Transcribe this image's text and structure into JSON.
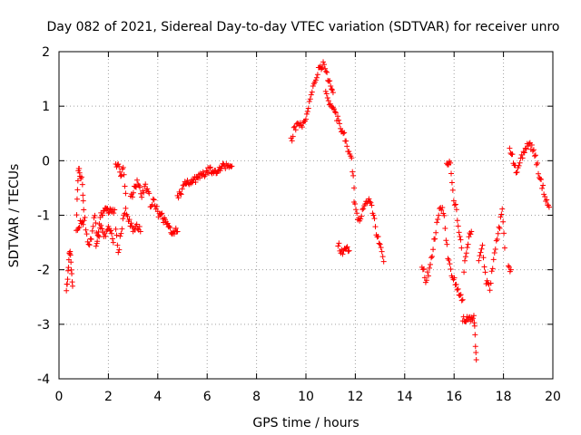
{
  "chart_data": {
    "type": "scatter",
    "title": "Day 082 of 2021, Sidereal Day-to-day VTEC variation (SDTVAR) for receiver unro",
    "xlabel": "GPS time / hours",
    "ylabel": "SDTVAR / TECUs",
    "xlim": [
      0,
      20
    ],
    "ylim": [
      -4,
      2
    ],
    "x_ticks": [
      "0",
      "2",
      "4",
      "6",
      "8",
      "10",
      "12",
      "14",
      "16",
      "18",
      "20"
    ],
    "y_ticks": [
      "-4",
      "-3",
      "-2",
      "-1",
      "0",
      "1",
      "2"
    ],
    "grid": true,
    "marker": "+",
    "marker_color": "#ff0000",
    "series": [
      {
        "name": "SDTVAR",
        "segments": [
          [
            [
              0.3,
              -2.4
            ],
            [
              0.35,
              -2.2
            ],
            [
              0.4,
              -1.8
            ],
            [
              0.45,
              -1.6
            ],
            [
              0.5,
              -2.0
            ],
            [
              0.55,
              -2.3
            ]
          ],
          [
            [
              0.7,
              -1.3
            ],
            [
              0.75,
              -0.5
            ],
            [
              0.8,
              -0.1
            ],
            [
              0.85,
              -0.3
            ],
            [
              0.95,
              -0.4
            ],
            [
              1.0,
              -0.9
            ]
          ],
          [
            [
              0.75,
              -1.3
            ],
            [
              0.9,
              -1.1
            ],
            [
              1.05,
              -1.1
            ],
            [
              1.2,
              -1.6
            ],
            [
              1.35,
              -1.3
            ],
            [
              1.45,
              -1.0
            ],
            [
              1.55,
              -1.5
            ],
            [
              1.7,
              -1.2
            ],
            [
              1.85,
              -1.4
            ],
            [
              2.0,
              -1.2
            ],
            [
              2.1,
              -1.3
            ],
            [
              2.2,
              -1.5
            ]
          ],
          [
            [
              1.5,
              -1.6
            ],
            [
              1.7,
              -1.0
            ],
            [
              1.9,
              -0.9
            ],
            [
              2.1,
              -0.95
            ],
            [
              2.25,
              -0.9
            ]
          ],
          [
            [
              2.3,
              -0.1
            ],
            [
              2.4,
              0.0
            ],
            [
              2.5,
              -0.3
            ],
            [
              2.6,
              -0.1
            ],
            [
              2.7,
              -0.6
            ]
          ],
          [
            [
              2.3,
              -1.3
            ],
            [
              2.4,
              -1.7
            ],
            [
              2.55,
              -1.2
            ],
            [
              2.7,
              -0.9
            ],
            [
              2.85,
              -1.1
            ],
            [
              3.0,
              -1.3
            ],
            [
              3.15,
              -1.2
            ],
            [
              3.3,
              -1.3
            ]
          ],
          [
            [
              2.9,
              -0.7
            ],
            [
              3.05,
              -0.5
            ],
            [
              3.2,
              -0.4
            ],
            [
              3.35,
              -0.6
            ],
            [
              3.5,
              -0.5
            ],
            [
              3.65,
              -0.6
            ]
          ],
          [
            [
              3.7,
              -0.9
            ],
            [
              3.85,
              -0.7
            ],
            [
              4.0,
              -0.95
            ],
            [
              4.2,
              -1.05
            ],
            [
              4.4,
              -1.2
            ],
            [
              4.6,
              -1.3
            ],
            [
              4.8,
              -1.3
            ]
          ],
          [
            [
              4.8,
              -0.7
            ],
            [
              4.95,
              -0.55
            ],
            [
              5.1,
              -0.45
            ],
            [
              5.3,
              -0.4
            ],
            [
              5.5,
              -0.35
            ],
            [
              5.7,
              -0.3
            ],
            [
              5.9,
              -0.25
            ],
            [
              6.1,
              -0.15
            ],
            [
              6.3,
              -0.2
            ],
            [
              6.5,
              -0.15
            ],
            [
              6.7,
              -0.1
            ],
            [
              6.85,
              -0.05
            ],
            [
              7.0,
              -0.1
            ]
          ],
          [
            [
              9.4,
              0.35
            ],
            [
              9.55,
              0.6
            ],
            [
              9.7,
              0.7
            ],
            [
              9.85,
              0.65
            ],
            [
              10.0,
              0.75
            ],
            [
              10.1,
              0.95
            ],
            [
              10.25,
              1.25
            ],
            [
              10.4,
              1.5
            ],
            [
              10.55,
              1.7
            ],
            [
              10.7,
              1.75
            ],
            [
              10.85,
              1.55
            ],
            [
              11.0,
              1.4
            ],
            [
              11.1,
              1.25
            ]
          ],
          [
            [
              10.8,
              1.2
            ],
            [
              10.95,
              1.05
            ],
            [
              11.1,
              0.95
            ],
            [
              11.25,
              0.8
            ],
            [
              11.4,
              0.6
            ],
            [
              11.55,
              0.45
            ],
            [
              11.7,
              0.2
            ],
            [
              11.85,
              0.0
            ],
            [
              11.95,
              -0.5
            ]
          ],
          [
            [
              11.3,
              -1.5
            ],
            [
              11.45,
              -1.7
            ],
            [
              11.6,
              -1.55
            ],
            [
              11.75,
              -1.65
            ]
          ],
          [
            [
              11.95,
              -0.7
            ],
            [
              12.1,
              -1.1
            ],
            [
              12.25,
              -1.0
            ],
            [
              12.4,
              -0.8
            ],
            [
              12.55,
              -0.65
            ],
            [
              12.7,
              -0.9
            ],
            [
              12.85,
              -1.3
            ],
            [
              13.0,
              -1.6
            ],
            [
              13.15,
              -1.85
            ]
          ],
          [
            [
              14.7,
              -1.9
            ],
            [
              14.85,
              -2.2
            ],
            [
              15.0,
              -2.0
            ],
            [
              15.15,
              -1.6
            ],
            [
              15.3,
              -1.2
            ],
            [
              15.45,
              -0.8
            ],
            [
              15.6,
              -1.0
            ],
            [
              15.75,
              -1.8
            ],
            [
              15.9,
              -2.1
            ],
            [
              16.05,
              -2.25
            ],
            [
              16.2,
              -2.45
            ],
            [
              16.35,
              -2.55
            ]
          ],
          [
            [
              15.7,
              0.0
            ],
            [
              15.85,
              -0.1
            ],
            [
              15.95,
              -0.6
            ],
            [
              16.1,
              -0.9
            ],
            [
              16.2,
              -1.3
            ],
            [
              16.3,
              -1.6
            ]
          ],
          [
            [
              16.4,
              -2.0
            ],
            [
              16.5,
              -1.7
            ],
            [
              16.6,
              -1.4
            ],
            [
              16.7,
              -1.3
            ]
          ],
          [
            [
              16.35,
              -2.9
            ],
            [
              16.8,
              -2.9
            ],
            [
              16.85,
              -3.2
            ],
            [
              16.9,
              -3.65
            ]
          ],
          [
            [
              17.0,
              -1.8
            ],
            [
              17.15,
              -1.6
            ],
            [
              17.3,
              -2.2
            ],
            [
              17.45,
              -2.35
            ],
            [
              17.6,
              -1.8
            ],
            [
              17.75,
              -1.4
            ],
            [
              17.85,
              -1.2
            ],
            [
              17.95,
              -0.9
            ],
            [
              18.05,
              -1.6
            ]
          ],
          [
            [
              18.2,
              -1.9
            ],
            [
              18.3,
              -2.0
            ]
          ],
          [
            [
              18.25,
              0.25
            ],
            [
              18.4,
              0.0
            ],
            [
              18.55,
              -0.25
            ],
            [
              18.7,
              0.0
            ],
            [
              18.85,
              0.2
            ],
            [
              19.0,
              0.3
            ],
            [
              19.15,
              0.25
            ],
            [
              19.3,
              0.05
            ],
            [
              19.45,
              -0.25
            ],
            [
              19.6,
              -0.5
            ],
            [
              19.75,
              -0.75
            ],
            [
              19.85,
              -0.85
            ]
          ]
        ]
      }
    ]
  }
}
